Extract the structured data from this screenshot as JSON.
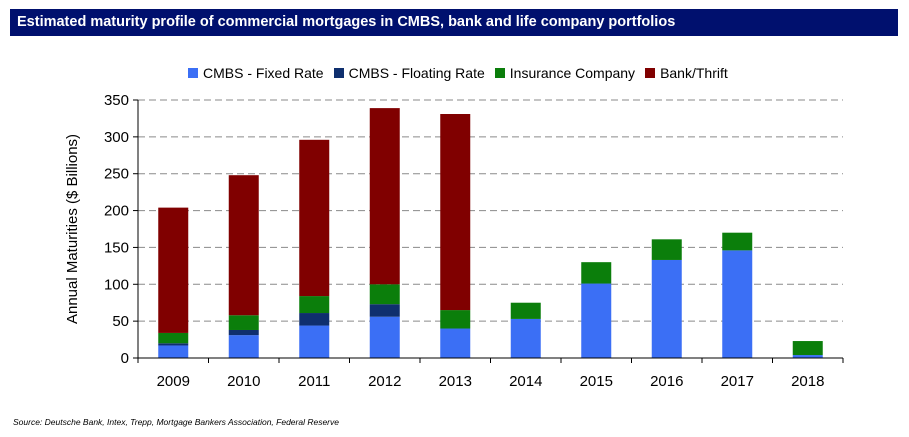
{
  "title": "Estimated maturity profile of commercial mortgages in CMBS, bank and life company portfolios",
  "source": "Source: Deutsche Bank, Intex, Trepp, Mortgage Bankers Association, Federal Reserve",
  "chart_data": {
    "type": "bar",
    "stacked": true,
    "categories": [
      "2009",
      "2010",
      "2011",
      "2012",
      "2013",
      "2014",
      "2015",
      "2016",
      "2017",
      "2018"
    ],
    "series": [
      {
        "name": "CMBS - Fixed Rate",
        "color": "#3b6ff5",
        "values": [
          17,
          31,
          44,
          56,
          40,
          53,
          101,
          133,
          146,
          4
        ]
      },
      {
        "name": "CMBS - Floating Rate",
        "color": "#0f2f6e",
        "values": [
          3,
          7,
          17,
          17,
          0,
          0,
          0,
          0,
          0,
          0
        ]
      },
      {
        "name": "Insurance Company",
        "color": "#0b7e0b",
        "values": [
          14,
          20,
          23,
          27,
          25,
          22,
          29,
          28,
          24,
          19
        ]
      },
      {
        "name": "Bank/Thrift",
        "color": "#800000",
        "values": [
          170,
          190,
          212,
          239,
          266,
          0,
          0,
          0,
          0,
          0
        ]
      }
    ],
    "ylabel": "Annual Maturities ($ Billions)",
    "xlabel": "",
    "ylim": [
      0,
      350
    ],
    "yticks": [
      0,
      50,
      100,
      150,
      200,
      250,
      300,
      350
    ],
    "grid": "horizontal dashed",
    "legend": "top"
  }
}
